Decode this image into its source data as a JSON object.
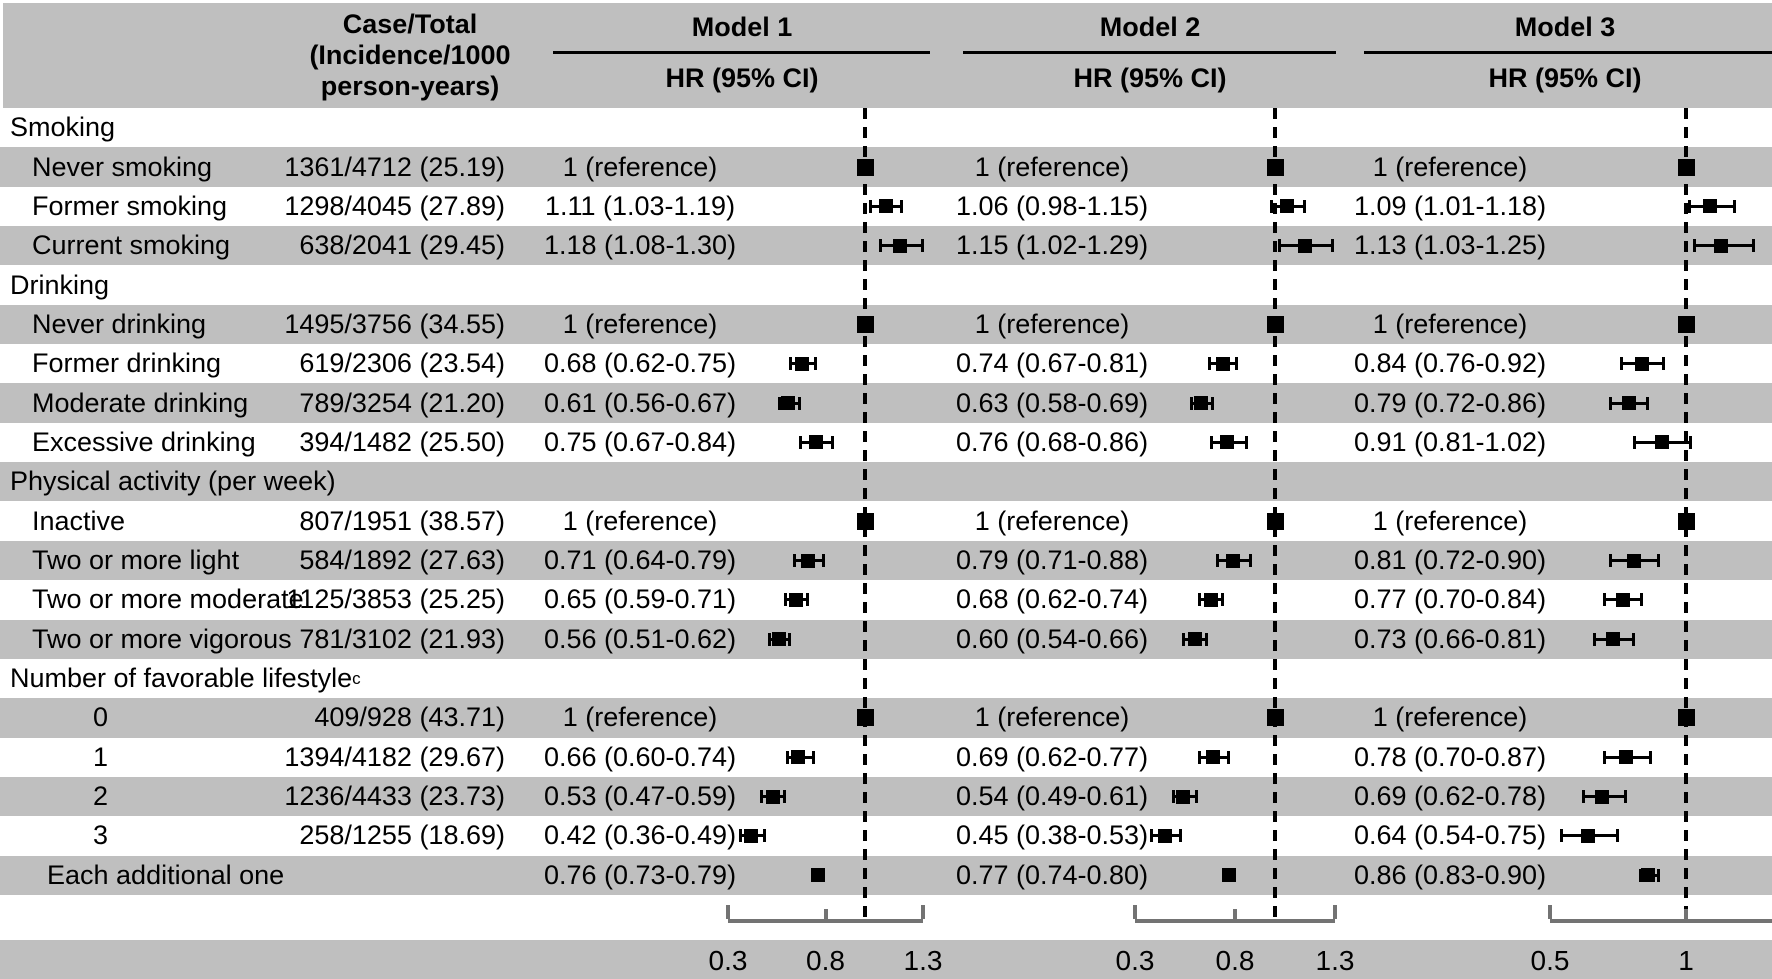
{
  "colors": {
    "band_gray": "#bfbfbf",
    "axis_gray": "#737373",
    "text": "#000000",
    "marker": "#000000"
  },
  "header": {
    "case_total_lines": [
      "Case/Total",
      "(Incidence/1000",
      "person-years)"
    ],
    "models": [
      {
        "name": "Model 1",
        "measure": "HR (95% CI)"
      },
      {
        "name": "Model 2",
        "measure": "HR (95% CI)"
      },
      {
        "name": "Model 3",
        "measure": "HR (95% CI)"
      }
    ]
  },
  "chart_data": {
    "type": "forest",
    "reference_label": "1 (reference)",
    "axes": [
      {
        "model": "Model 1",
        "ticks": [
          0.3,
          0.8,
          1.3
        ],
        "tick_labels": [
          "0.3",
          "0.8",
          "1.3"
        ],
        "reference_line": 1.0
      },
      {
        "model": "Model 2",
        "ticks": [
          0.3,
          0.8,
          1.3
        ],
        "tick_labels": [
          "0.3",
          "0.8",
          "1.3"
        ],
        "reference_line": 1.0
      },
      {
        "model": "Model 3",
        "ticks": [
          0.5,
          1.0
        ],
        "tick_labels": [
          "0.5",
          "1"
        ],
        "reference_line": 1.0
      }
    ],
    "rows": [
      {
        "type": "section",
        "label": "Smoking"
      },
      {
        "type": "item",
        "label": "Never smoking",
        "case_total": "1361/4712 (25.19)",
        "models": [
          {
            "ref": true,
            "hr": 1
          },
          {
            "ref": true,
            "hr": 1
          },
          {
            "ref": true,
            "hr": 1
          }
        ]
      },
      {
        "type": "item",
        "label": "Former smoking",
        "case_total": "1298/4045 (27.89)",
        "models": [
          {
            "text": "1.11 (1.03-1.19)",
            "hr": 1.11,
            "lo": 1.03,
            "hi": 1.19
          },
          {
            "text": "1.06 (0.98-1.15)",
            "hr": 1.06,
            "lo": 0.98,
            "hi": 1.15
          },
          {
            "text": "1.09 (1.01-1.18)",
            "hr": 1.09,
            "lo": 1.01,
            "hi": 1.18
          }
        ]
      },
      {
        "type": "item",
        "label": "Current smoking",
        "case_total": "638/2041 (29.45)",
        "models": [
          {
            "text": "1.18 (1.08-1.30)",
            "hr": 1.18,
            "lo": 1.08,
            "hi": 1.3
          },
          {
            "text": "1.15 (1.02-1.29)",
            "hr": 1.15,
            "lo": 1.02,
            "hi": 1.29
          },
          {
            "text": "1.13 (1.03-1.25)",
            "hr": 1.13,
            "lo": 1.03,
            "hi": 1.25
          }
        ]
      },
      {
        "type": "section",
        "label": "Drinking"
      },
      {
        "type": "item",
        "label": "Never drinking",
        "case_total": "1495/3756 (34.55)",
        "models": [
          {
            "ref": true,
            "hr": 1
          },
          {
            "ref": true,
            "hr": 1
          },
          {
            "ref": true,
            "hr": 1
          }
        ]
      },
      {
        "type": "item",
        "label": "Former drinking",
        "case_total": "619/2306 (23.54)",
        "models": [
          {
            "text": "0.68 (0.62-0.75)",
            "hr": 0.68,
            "lo": 0.62,
            "hi": 0.75
          },
          {
            "text": "0.74 (0.67-0.81)",
            "hr": 0.74,
            "lo": 0.67,
            "hi": 0.81
          },
          {
            "text": "0.84 (0.76-0.92)",
            "hr": 0.84,
            "lo": 0.76,
            "hi": 0.92
          }
        ]
      },
      {
        "type": "item",
        "label": "Moderate drinking",
        "case_total": "789/3254 (21.20)",
        "models": [
          {
            "text": "0.61 (0.56-0.67)",
            "hr": 0.61,
            "lo": 0.56,
            "hi": 0.67
          },
          {
            "text": "0.63 (0.58-0.69)",
            "hr": 0.63,
            "lo": 0.58,
            "hi": 0.69
          },
          {
            "text": "0.79 (0.72-0.86)",
            "hr": 0.79,
            "lo": 0.72,
            "hi": 0.86
          }
        ]
      },
      {
        "type": "item",
        "label": "Excessive drinking",
        "case_total": "394/1482 (25.50)",
        "models": [
          {
            "text": "0.75 (0.67-0.84)",
            "hr": 0.75,
            "lo": 0.67,
            "hi": 0.84
          },
          {
            "text": "0.76 (0.68-0.86)",
            "hr": 0.76,
            "lo": 0.68,
            "hi": 0.86
          },
          {
            "text": "0.91 (0.81-1.02)",
            "hr": 0.91,
            "lo": 0.81,
            "hi": 1.02
          }
        ]
      },
      {
        "type": "section",
        "label": "Physical activity (per week)"
      },
      {
        "type": "item",
        "label": "Inactive",
        "case_total": "807/1951 (38.57)",
        "models": [
          {
            "ref": true,
            "hr": 1
          },
          {
            "ref": true,
            "hr": 1
          },
          {
            "ref": true,
            "hr": 1
          }
        ]
      },
      {
        "type": "item",
        "label": "Two or more light",
        "case_total": "584/1892 (27.63)",
        "models": [
          {
            "text": "0.71 (0.64-0.79)",
            "hr": 0.71,
            "lo": 0.64,
            "hi": 0.79
          },
          {
            "text": "0.79 (0.71-0.88)",
            "hr": 0.79,
            "lo": 0.71,
            "hi": 0.88
          },
          {
            "text": "0.81 (0.72-0.90)",
            "hr": 0.81,
            "lo": 0.72,
            "hi": 0.9
          }
        ]
      },
      {
        "type": "item",
        "label": "Two or more moderate",
        "case_total": "1125/3853 (25.25)",
        "models": [
          {
            "text": "0.65 (0.59-0.71)",
            "hr": 0.65,
            "lo": 0.59,
            "hi": 0.71
          },
          {
            "text": "0.68 (0.62-0.74)",
            "hr": 0.68,
            "lo": 0.62,
            "hi": 0.74
          },
          {
            "text": "0.77 (0.70-0.84)",
            "hr": 0.77,
            "lo": 0.7,
            "hi": 0.84
          }
        ]
      },
      {
        "type": "item",
        "label": "Two or more vigorous",
        "case_total": "781/3102 (21.93)",
        "models": [
          {
            "text": "0.56 (0.51-0.62)",
            "hr": 0.56,
            "lo": 0.51,
            "hi": 0.62
          },
          {
            "text": "0.60 (0.54-0.66)",
            "hr": 0.6,
            "lo": 0.54,
            "hi": 0.66
          },
          {
            "text": "0.73 (0.66-0.81)",
            "hr": 0.73,
            "lo": 0.66,
            "hi": 0.81
          }
        ]
      },
      {
        "type": "section",
        "label": "Number of favorable lifestyle",
        "sup": "c"
      },
      {
        "type": "digit",
        "label": "0",
        "case_total": "409/928 (43.71)",
        "models": [
          {
            "ref": true,
            "hr": 1
          },
          {
            "ref": true,
            "hr": 1
          },
          {
            "ref": true,
            "hr": 1
          }
        ]
      },
      {
        "type": "digit",
        "label": "1",
        "case_total": "1394/4182 (29.67)",
        "models": [
          {
            "text": "0.66 (0.60-0.74)",
            "hr": 0.66,
            "lo": 0.6,
            "hi": 0.74
          },
          {
            "text": "0.69 (0.62-0.77)",
            "hr": 0.69,
            "lo": 0.62,
            "hi": 0.77
          },
          {
            "text": "0.78 (0.70-0.87)",
            "hr": 0.78,
            "lo": 0.7,
            "hi": 0.87
          }
        ]
      },
      {
        "type": "digit",
        "label": "2",
        "case_total": "1236/4433 (23.73)",
        "models": [
          {
            "text": "0.53 (0.47-0.59)",
            "hr": 0.53,
            "lo": 0.47,
            "hi": 0.59
          },
          {
            "text": "0.54 (0.49-0.61)",
            "hr": 0.54,
            "lo": 0.49,
            "hi": 0.61
          },
          {
            "text": "0.69 (0.62-0.78)",
            "hr": 0.69,
            "lo": 0.62,
            "hi": 0.78
          }
        ]
      },
      {
        "type": "digit",
        "label": "3",
        "case_total": "258/1255 (18.69)",
        "models": [
          {
            "text": "0.42 (0.36-0.49)",
            "hr": 0.42,
            "lo": 0.36,
            "hi": 0.49
          },
          {
            "text": "0.45 (0.38-0.53)",
            "hr": 0.45,
            "lo": 0.38,
            "hi": 0.53
          },
          {
            "text": "0.64 (0.54-0.75)",
            "hr": 0.64,
            "lo": 0.54,
            "hi": 0.75
          }
        ]
      },
      {
        "type": "wide",
        "label": "Each additional one",
        "case_total": "",
        "models": [
          {
            "text": "0.76 (0.73-0.79)",
            "hr": 0.76,
            "lo": 0.73,
            "hi": 0.79
          },
          {
            "text": "0.77 (0.74-0.80)",
            "hr": 0.77,
            "lo": 0.74,
            "hi": 0.8
          },
          {
            "text": "0.86 (0.83-0.90)",
            "hr": 0.86,
            "lo": 0.83,
            "hi": 0.9
          }
        ]
      }
    ]
  }
}
